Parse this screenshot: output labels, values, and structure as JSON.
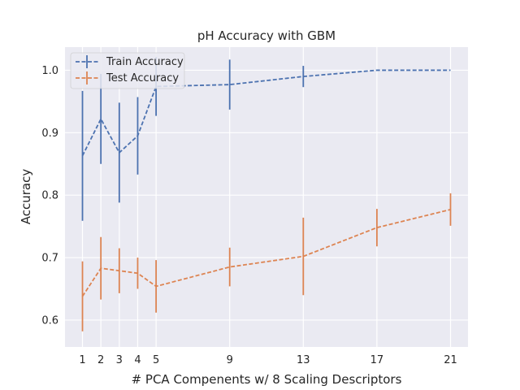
{
  "chart_data": {
    "type": "line",
    "title": "pH Accuracy with GBM",
    "xlabel": "# PCA Compenents w/ 8 Scaling Descriptors",
    "ylabel": "Accuracy",
    "x": [
      1,
      2,
      3,
      4,
      5,
      9,
      13,
      17,
      21
    ],
    "x_tick_labels": [
      "1",
      "2",
      "3",
      "4",
      "5",
      "9",
      "13",
      "17",
      "21"
    ],
    "y_ticks": [
      0.6,
      0.7,
      0.8,
      0.9,
      1.0
    ],
    "y_tick_labels": [
      "0.6",
      "0.7",
      "0.8",
      "0.9",
      "1.0"
    ],
    "xlim": [
      0.05,
      21.95
    ],
    "ylim": [
      0.557,
      1.037
    ],
    "grid": true,
    "legend_position": "top-left",
    "series": [
      {
        "name": "Train Accuracy",
        "color": "#4c72b0",
        "values": [
          0.863,
          0.922,
          0.868,
          0.895,
          0.974,
          0.977,
          0.99,
          1.0,
          1.0
        ],
        "errors": [
          0.104,
          0.072,
          0.08,
          0.062,
          0.047,
          0.04,
          0.017,
          0.0,
          0.0
        ]
      },
      {
        "name": "Test Accuracy",
        "color": "#dd8452",
        "values": [
          0.638,
          0.683,
          0.679,
          0.675,
          0.654,
          0.685,
          0.702,
          0.748,
          0.777
        ],
        "errors": [
          0.056,
          0.05,
          0.036,
          0.025,
          0.042,
          0.031,
          0.062,
          0.03,
          0.026
        ]
      }
    ]
  }
}
